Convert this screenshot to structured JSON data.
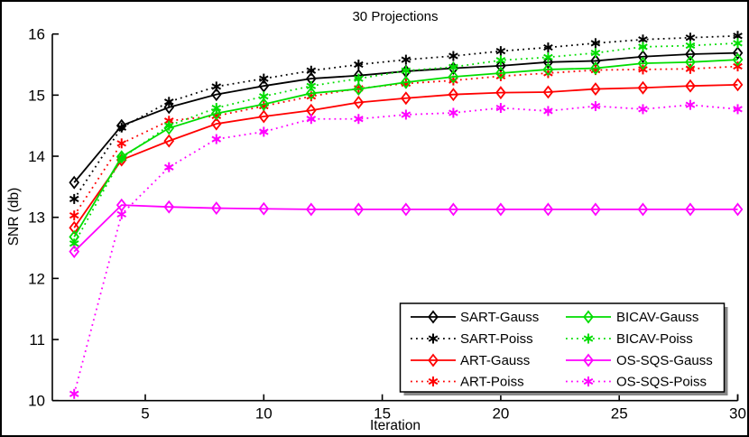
{
  "figure": {
    "background": "#ffffff",
    "frame_color": "#000000",
    "axis_color": "#000000",
    "legend_shadow_color": "#888888"
  },
  "chart_data": {
    "type": "line",
    "title": "30 Projections",
    "xlabel": "Iteration",
    "ylabel": "SNR (db)",
    "xlim": [
      1,
      30
    ],
    "ylim": [
      10,
      16
    ],
    "xticks": [
      "5",
      "10",
      "15",
      "20",
      "25",
      "30"
    ],
    "yticks": [
      "10",
      "11",
      "12",
      "13",
      "14",
      "15",
      "16"
    ],
    "grid": false,
    "legend_position": "inside-bottom-right",
    "x": [
      2,
      4,
      6,
      8,
      10,
      12,
      14,
      16,
      18,
      20,
      22,
      24,
      26,
      28,
      30
    ],
    "series": [
      {
        "name": "SART-Gauss",
        "color": "#000000",
        "line": "solid",
        "marker": "diamond",
        "values": [
          13.57,
          14.5,
          14.8,
          15.01,
          15.15,
          15.27,
          15.32,
          15.39,
          15.44,
          15.48,
          15.54,
          15.56,
          15.63,
          15.67,
          15.69
        ]
      },
      {
        "name": "SART-Poiss",
        "color": "#000000",
        "line": "dotted",
        "marker": "asterisk",
        "values": [
          13.3,
          14.47,
          14.89,
          15.14,
          15.27,
          15.4,
          15.5,
          15.58,
          15.64,
          15.72,
          15.78,
          15.85,
          15.91,
          15.94,
          15.97
        ]
      },
      {
        "name": "ART-Gauss",
        "color": "#ff0000",
        "line": "solid",
        "marker": "diamond",
        "values": [
          12.83,
          13.94,
          14.25,
          14.53,
          14.65,
          14.75,
          14.88,
          14.95,
          15.01,
          15.04,
          15.05,
          15.1,
          15.12,
          15.15,
          15.17
        ]
      },
      {
        "name": "ART-Poiss",
        "color": "#ff0000",
        "line": "dotted",
        "marker": "asterisk",
        "values": [
          13.03,
          14.21,
          14.58,
          14.66,
          14.82,
          14.98,
          15.11,
          15.19,
          15.24,
          15.31,
          15.36,
          15.41,
          15.42,
          15.43,
          15.47
        ]
      },
      {
        "name": "BICAV-Gauss",
        "color": "#00dd00",
        "line": "solid",
        "marker": "diamond",
        "values": [
          12.68,
          13.99,
          14.46,
          14.7,
          14.85,
          15.03,
          15.1,
          15.21,
          15.3,
          15.36,
          15.42,
          15.44,
          15.52,
          15.54,
          15.58
        ]
      },
      {
        "name": "BICAV-Poiss",
        "color": "#00dd00",
        "line": "dotted",
        "marker": "asterisk",
        "values": [
          12.57,
          13.97,
          14.5,
          14.79,
          14.98,
          15.15,
          15.27,
          15.4,
          15.46,
          15.57,
          15.62,
          15.69,
          15.79,
          15.81,
          15.85
        ]
      },
      {
        "name": "OS-SQS-Gauss",
        "color": "#ff00ff",
        "line": "solid",
        "marker": "diamond",
        "values": [
          12.44,
          13.2,
          13.17,
          13.15,
          13.14,
          13.13,
          13.13,
          13.13,
          13.13,
          13.13,
          13.13,
          13.13,
          13.13,
          13.13,
          13.13
        ]
      },
      {
        "name": "OS-SQS-Poiss",
        "color": "#ff00ff",
        "line": "dotted",
        "marker": "asterisk",
        "values": [
          10.11,
          13.05,
          13.82,
          14.28,
          14.4,
          14.61,
          14.61,
          14.68,
          14.71,
          14.79,
          14.74,
          14.82,
          14.77,
          14.84,
          14.77
        ]
      }
    ],
    "legend_columns": [
      [
        "SART-Gauss",
        "SART-Poiss",
        "ART-Gauss",
        "ART-Poiss"
      ],
      [
        "BICAV-Gauss",
        "BICAV-Poiss",
        "OS-SQS-Gauss",
        "OS-SQS-Poiss"
      ]
    ]
  }
}
